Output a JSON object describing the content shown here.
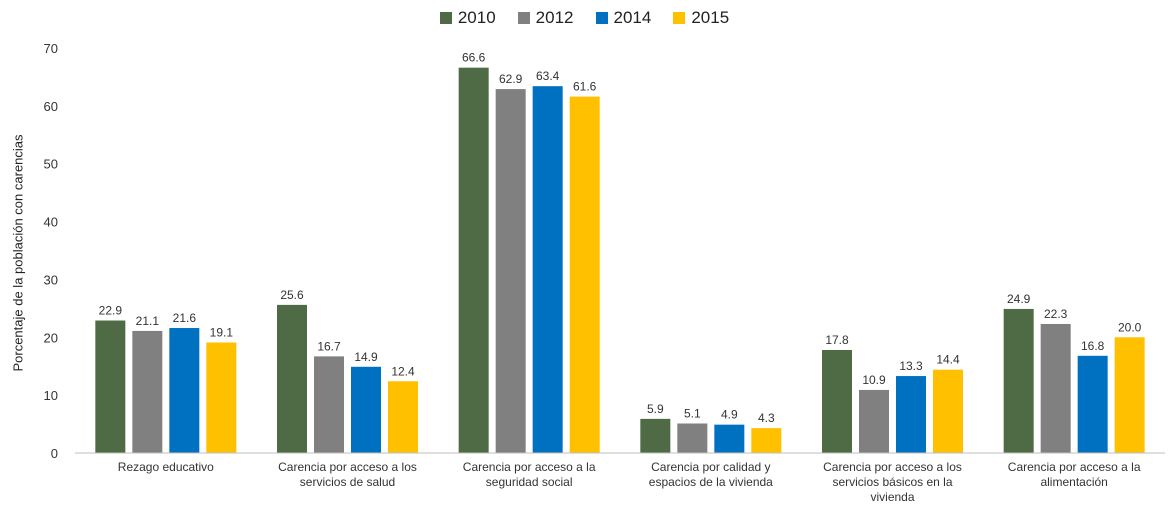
{
  "chart_data": {
    "type": "bar",
    "title": "",
    "xlabel": "",
    "ylabel": "Porcentaje de la población con carencias",
    "ylim": [
      0,
      70
    ],
    "yticks": [
      0,
      10,
      20,
      30,
      40,
      50,
      60,
      70
    ],
    "grid": false,
    "legend_position": "top-center",
    "categories": [
      "Rezago educativo",
      "Carencia por acceso a los servicios de salud",
      "Carencia por acceso a la seguridad social",
      "Carencia por calidad y espacios de la vivienda",
      "Carencia por acceso a los servicios básicos en la vivienda",
      "Carencia por acceso a la alimentación"
    ],
    "category_lines": [
      [
        "Rezago educativo"
      ],
      [
        "Carencia por acceso a los",
        "servicios de salud"
      ],
      [
        "Carencia por acceso a la",
        "seguridad social"
      ],
      [
        "Carencia por calidad y",
        "espacios de la vivienda"
      ],
      [
        "Carencia por acceso a los",
        "servicios básicos en la",
        "vivienda"
      ],
      [
        "Carencia por acceso a la",
        "alimentación"
      ]
    ],
    "series": [
      {
        "name": "2010",
        "color": "#4e6b45",
        "values": [
          22.9,
          25.6,
          66.6,
          5.9,
          17.8,
          24.9
        ]
      },
      {
        "name": "2012",
        "color": "#808080",
        "values": [
          21.1,
          16.7,
          62.9,
          5.1,
          10.9,
          22.3
        ]
      },
      {
        "name": "2014",
        "color": "#0070c0",
        "values": [
          21.6,
          14.9,
          63.4,
          4.9,
          13.3,
          16.8
        ]
      },
      {
        "name": "2015",
        "color": "#ffc000",
        "values": [
          19.1,
          12.4,
          61.6,
          4.3,
          14.4,
          20.0
        ]
      }
    ]
  }
}
